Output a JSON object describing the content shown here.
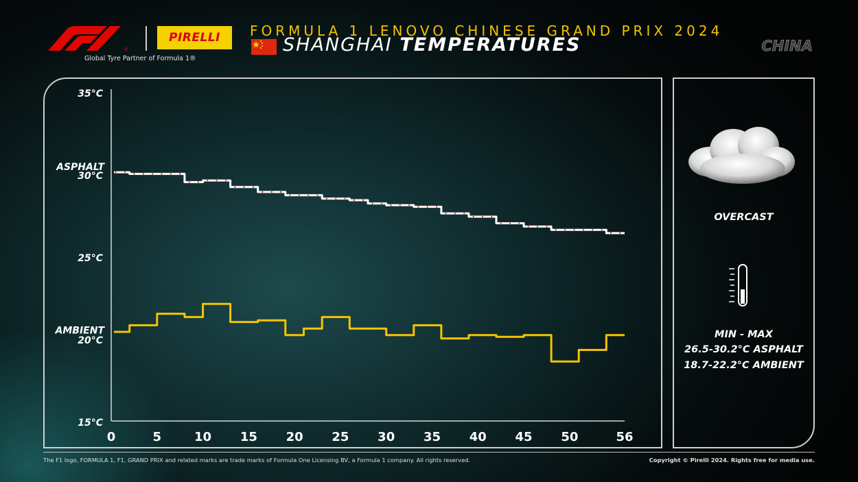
{
  "header": {
    "tagline": "Global Tyre Partner of Formula 1®",
    "pirelli_wordmark": "PIRELLI",
    "event": "FORMULA 1 LENOVO CHINESE GRAND PRIX 2024",
    "title_light": "SHANGHAI",
    "title_bold": "TEMPERATURES",
    "country": "CHINA"
  },
  "info": {
    "condition": "OVERCAST",
    "min_max_label": "MIN  -  MAX",
    "asphalt_range": "26.5-30.2°C ASPHALT",
    "ambient_range": "18.7-22.2°C AMBIENT"
  },
  "footer": {
    "legal": "The F1 logo, FORMULA 1, F1, GRAND PRIX and related marks are trade marks of Formula One Licensing BV, a Formula 1 company. All rights reserved.",
    "copyright": "Copyright © Pirelli 2024. Rights free for media use."
  },
  "colors": {
    "asphalt_line": "#ffffff",
    "asphalt_dot": "#e0201e",
    "ambient_line": "#f5c400",
    "accent": "#f2c200"
  },
  "chart_data": {
    "type": "line",
    "xlim": [
      0,
      56
    ],
    "ylim": [
      15,
      35
    ],
    "xticks": [
      "0",
      "5",
      "10",
      "15",
      "20",
      "25",
      "30",
      "35",
      "40",
      "45",
      "50",
      "56"
    ],
    "xtick_values": [
      0,
      5,
      10,
      15,
      20,
      25,
      30,
      35,
      40,
      45,
      50,
      56
    ],
    "ytick_labels": [
      {
        "value": 35,
        "label": "35°C"
      },
      {
        "value": 30,
        "label": "30°C"
      },
      {
        "value": 25,
        "label": "25°C"
      },
      {
        "value": 20,
        "label": "20°C"
      },
      {
        "value": 15,
        "label": "15°C"
      }
    ],
    "series_labels": [
      {
        "value": 30.55,
        "label": "ASPHALT"
      },
      {
        "value": 20.6,
        "label": "AMBIENT"
      }
    ],
    "x": [
      0,
      1,
      2,
      3,
      4,
      5,
      6,
      7,
      8,
      9,
      10,
      11,
      12,
      13,
      14,
      15,
      16,
      17,
      18,
      19,
      20,
      21,
      22,
      23,
      24,
      25,
      26,
      27,
      28,
      29,
      30,
      31,
      32,
      33,
      34,
      35,
      36,
      37,
      38,
      39,
      40,
      41,
      42,
      43,
      44,
      45,
      46,
      47,
      48,
      49,
      50,
      51,
      52,
      53,
      54,
      55
    ],
    "series": [
      {
        "name": "ASPHALT",
        "values": [
          30.2,
          30.2,
          30.1,
          30.1,
          30.1,
          30.1,
          30.1,
          30.1,
          29.6,
          29.6,
          29.7,
          29.7,
          29.7,
          29.3,
          29.3,
          29.3,
          29.0,
          29.0,
          29.0,
          28.8,
          28.8,
          28.8,
          28.8,
          28.6,
          28.6,
          28.6,
          28.5,
          28.5,
          28.3,
          28.3,
          28.2,
          28.2,
          28.2,
          28.1,
          28.1,
          28.1,
          27.7,
          27.7,
          27.7,
          27.5,
          27.5,
          27.5,
          27.1,
          27.1,
          27.1,
          26.9,
          26.9,
          26.9,
          26.7,
          26.7,
          26.7,
          26.7,
          26.7,
          26.7,
          26.5,
          26.5
        ]
      },
      {
        "name": "AMBIENT",
        "values": [
          20.5,
          20.5,
          20.9,
          20.9,
          20.9,
          21.6,
          21.6,
          21.6,
          21.4,
          21.4,
          22.2,
          22.2,
          22.2,
          21.1,
          21.1,
          21.1,
          21.2,
          21.2,
          21.2,
          20.3,
          20.3,
          20.7,
          20.7,
          21.4,
          21.4,
          21.4,
          20.7,
          20.7,
          20.7,
          20.7,
          20.3,
          20.3,
          20.3,
          20.9,
          20.9,
          20.9,
          20.1,
          20.1,
          20.1,
          20.3,
          20.3,
          20.3,
          20.2,
          20.2,
          20.2,
          20.3,
          20.3,
          20.3,
          18.7,
          18.7,
          18.7,
          19.4,
          19.4,
          19.4,
          20.3,
          20.3
        ]
      }
    ]
  }
}
